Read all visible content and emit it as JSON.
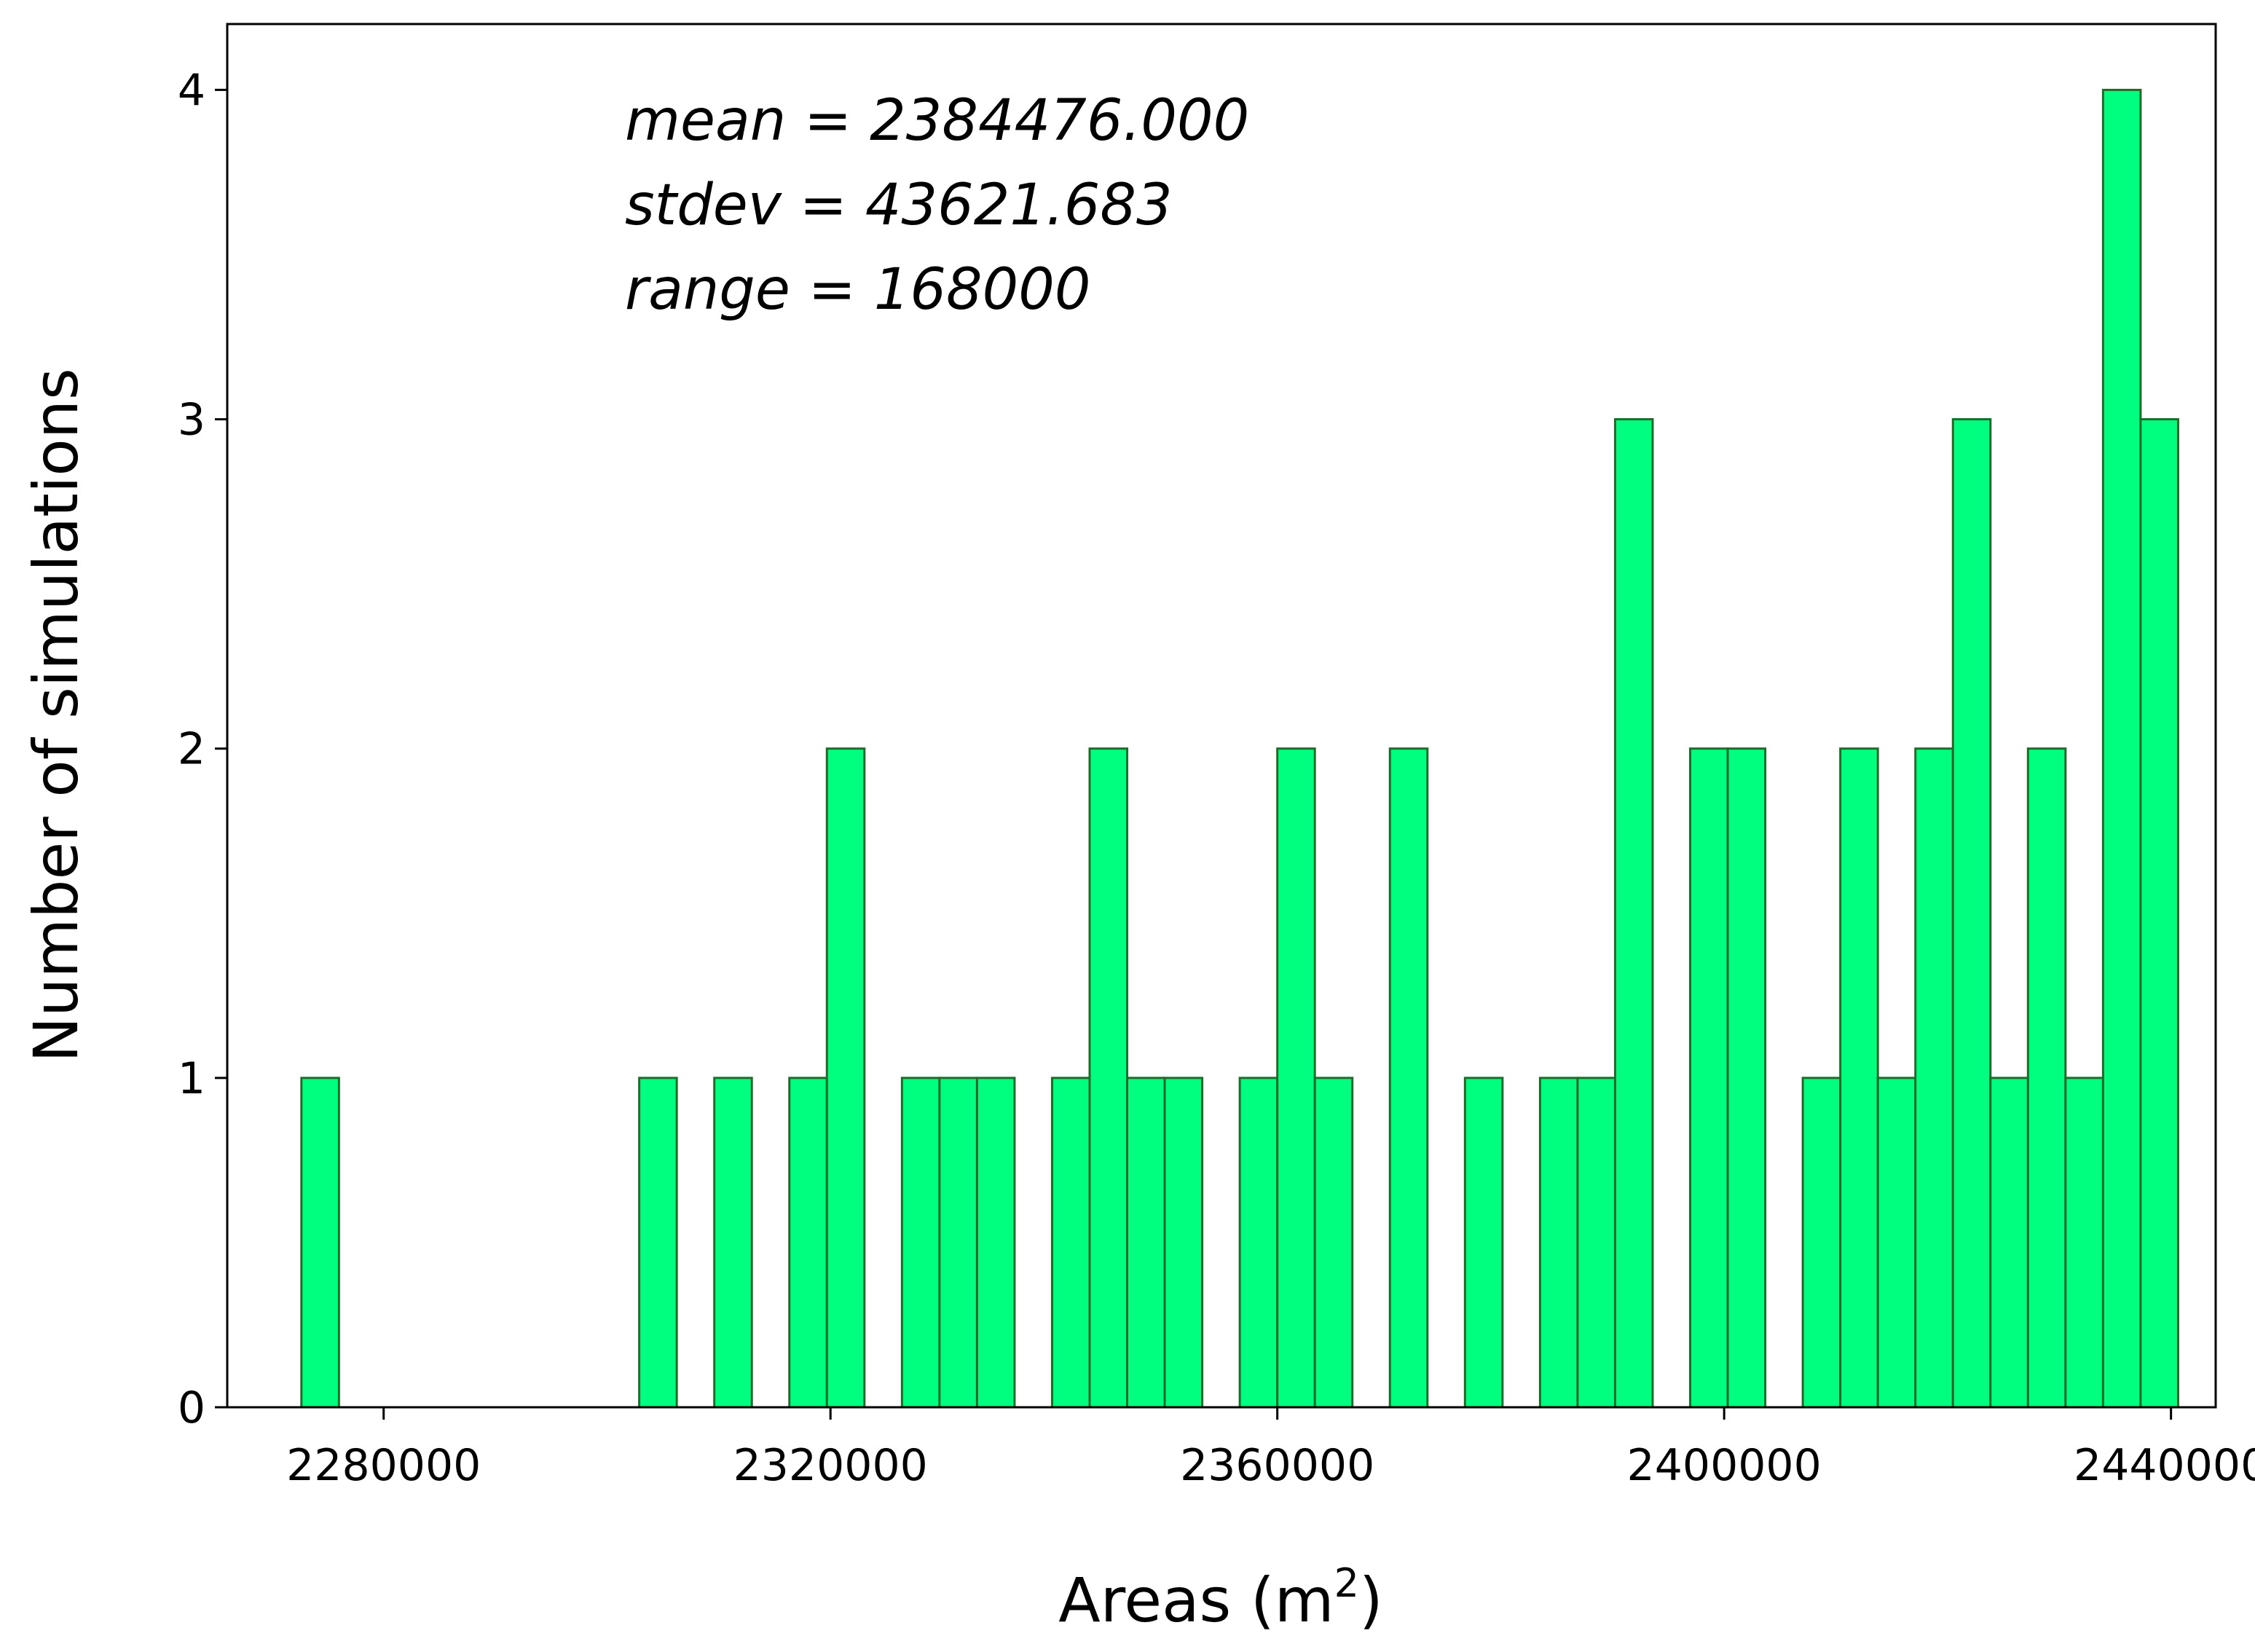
{
  "colors": {
    "bar_fill": "#00ff7f",
    "bar_edge": "#1f6b2a",
    "axis": "#000000",
    "background": "#ffffff"
  },
  "chart_data": {
    "type": "bar",
    "subtype": "histogram",
    "xlabel": "Areas (m",
    "xlabel_sup": "2",
    "xlabel_close": ")",
    "ylabel": "Number of simulations",
    "xlim": [
      2266000,
      2444000
    ],
    "ylim": [
      0,
      4.2
    ],
    "xticks": [
      2280000,
      2320000,
      2360000,
      2400000,
      2440000
    ],
    "xtick_labels": [
      "2280000",
      "2320000",
      "2360000",
      "2400000",
      "2440000"
    ],
    "yticks": [
      0,
      1,
      2,
      3,
      4
    ],
    "ytick_labels": [
      "0",
      "1",
      "2",
      "3",
      "4"
    ],
    "bin_width": 3360,
    "bins": [
      {
        "start": 2272640,
        "count": 1
      },
      {
        "start": 2302880,
        "count": 1
      },
      {
        "start": 2309600,
        "count": 1
      },
      {
        "start": 2316320,
        "count": 1
      },
      {
        "start": 2319680,
        "count": 2
      },
      {
        "start": 2326400,
        "count": 1
      },
      {
        "start": 2329760,
        "count": 1
      },
      {
        "start": 2333120,
        "count": 1
      },
      {
        "start": 2339840,
        "count": 1
      },
      {
        "start": 2343200,
        "count": 2
      },
      {
        "start": 2346560,
        "count": 1
      },
      {
        "start": 2349920,
        "count": 1
      },
      {
        "start": 2356640,
        "count": 1
      },
      {
        "start": 2360000,
        "count": 2
      },
      {
        "start": 2363360,
        "count": 1
      },
      {
        "start": 2370080,
        "count": 2
      },
      {
        "start": 2376800,
        "count": 1
      },
      {
        "start": 2383520,
        "count": 1
      },
      {
        "start": 2386880,
        "count": 1
      },
      {
        "start": 2390240,
        "count": 3
      },
      {
        "start": 2396960,
        "count": 2
      },
      {
        "start": 2400320,
        "count": 2
      },
      {
        "start": 2407040,
        "count": 1
      },
      {
        "start": 2410400,
        "count": 2
      },
      {
        "start": 2413760,
        "count": 1
      },
      {
        "start": 2417120,
        "count": 2
      },
      {
        "start": 2420480,
        "count": 3
      },
      {
        "start": 2423840,
        "count": 1
      },
      {
        "start": 2427200,
        "count": 2
      },
      {
        "start": 2430560,
        "count": 1
      },
      {
        "start": 2433920,
        "count": 4
      },
      {
        "start": 2437280,
        "count": 3
      }
    ],
    "annotations": [
      "mean = 2384476.000",
      "stdev = 43621.683",
      "range = 168000"
    ],
    "legend": "none",
    "grid": false
  }
}
